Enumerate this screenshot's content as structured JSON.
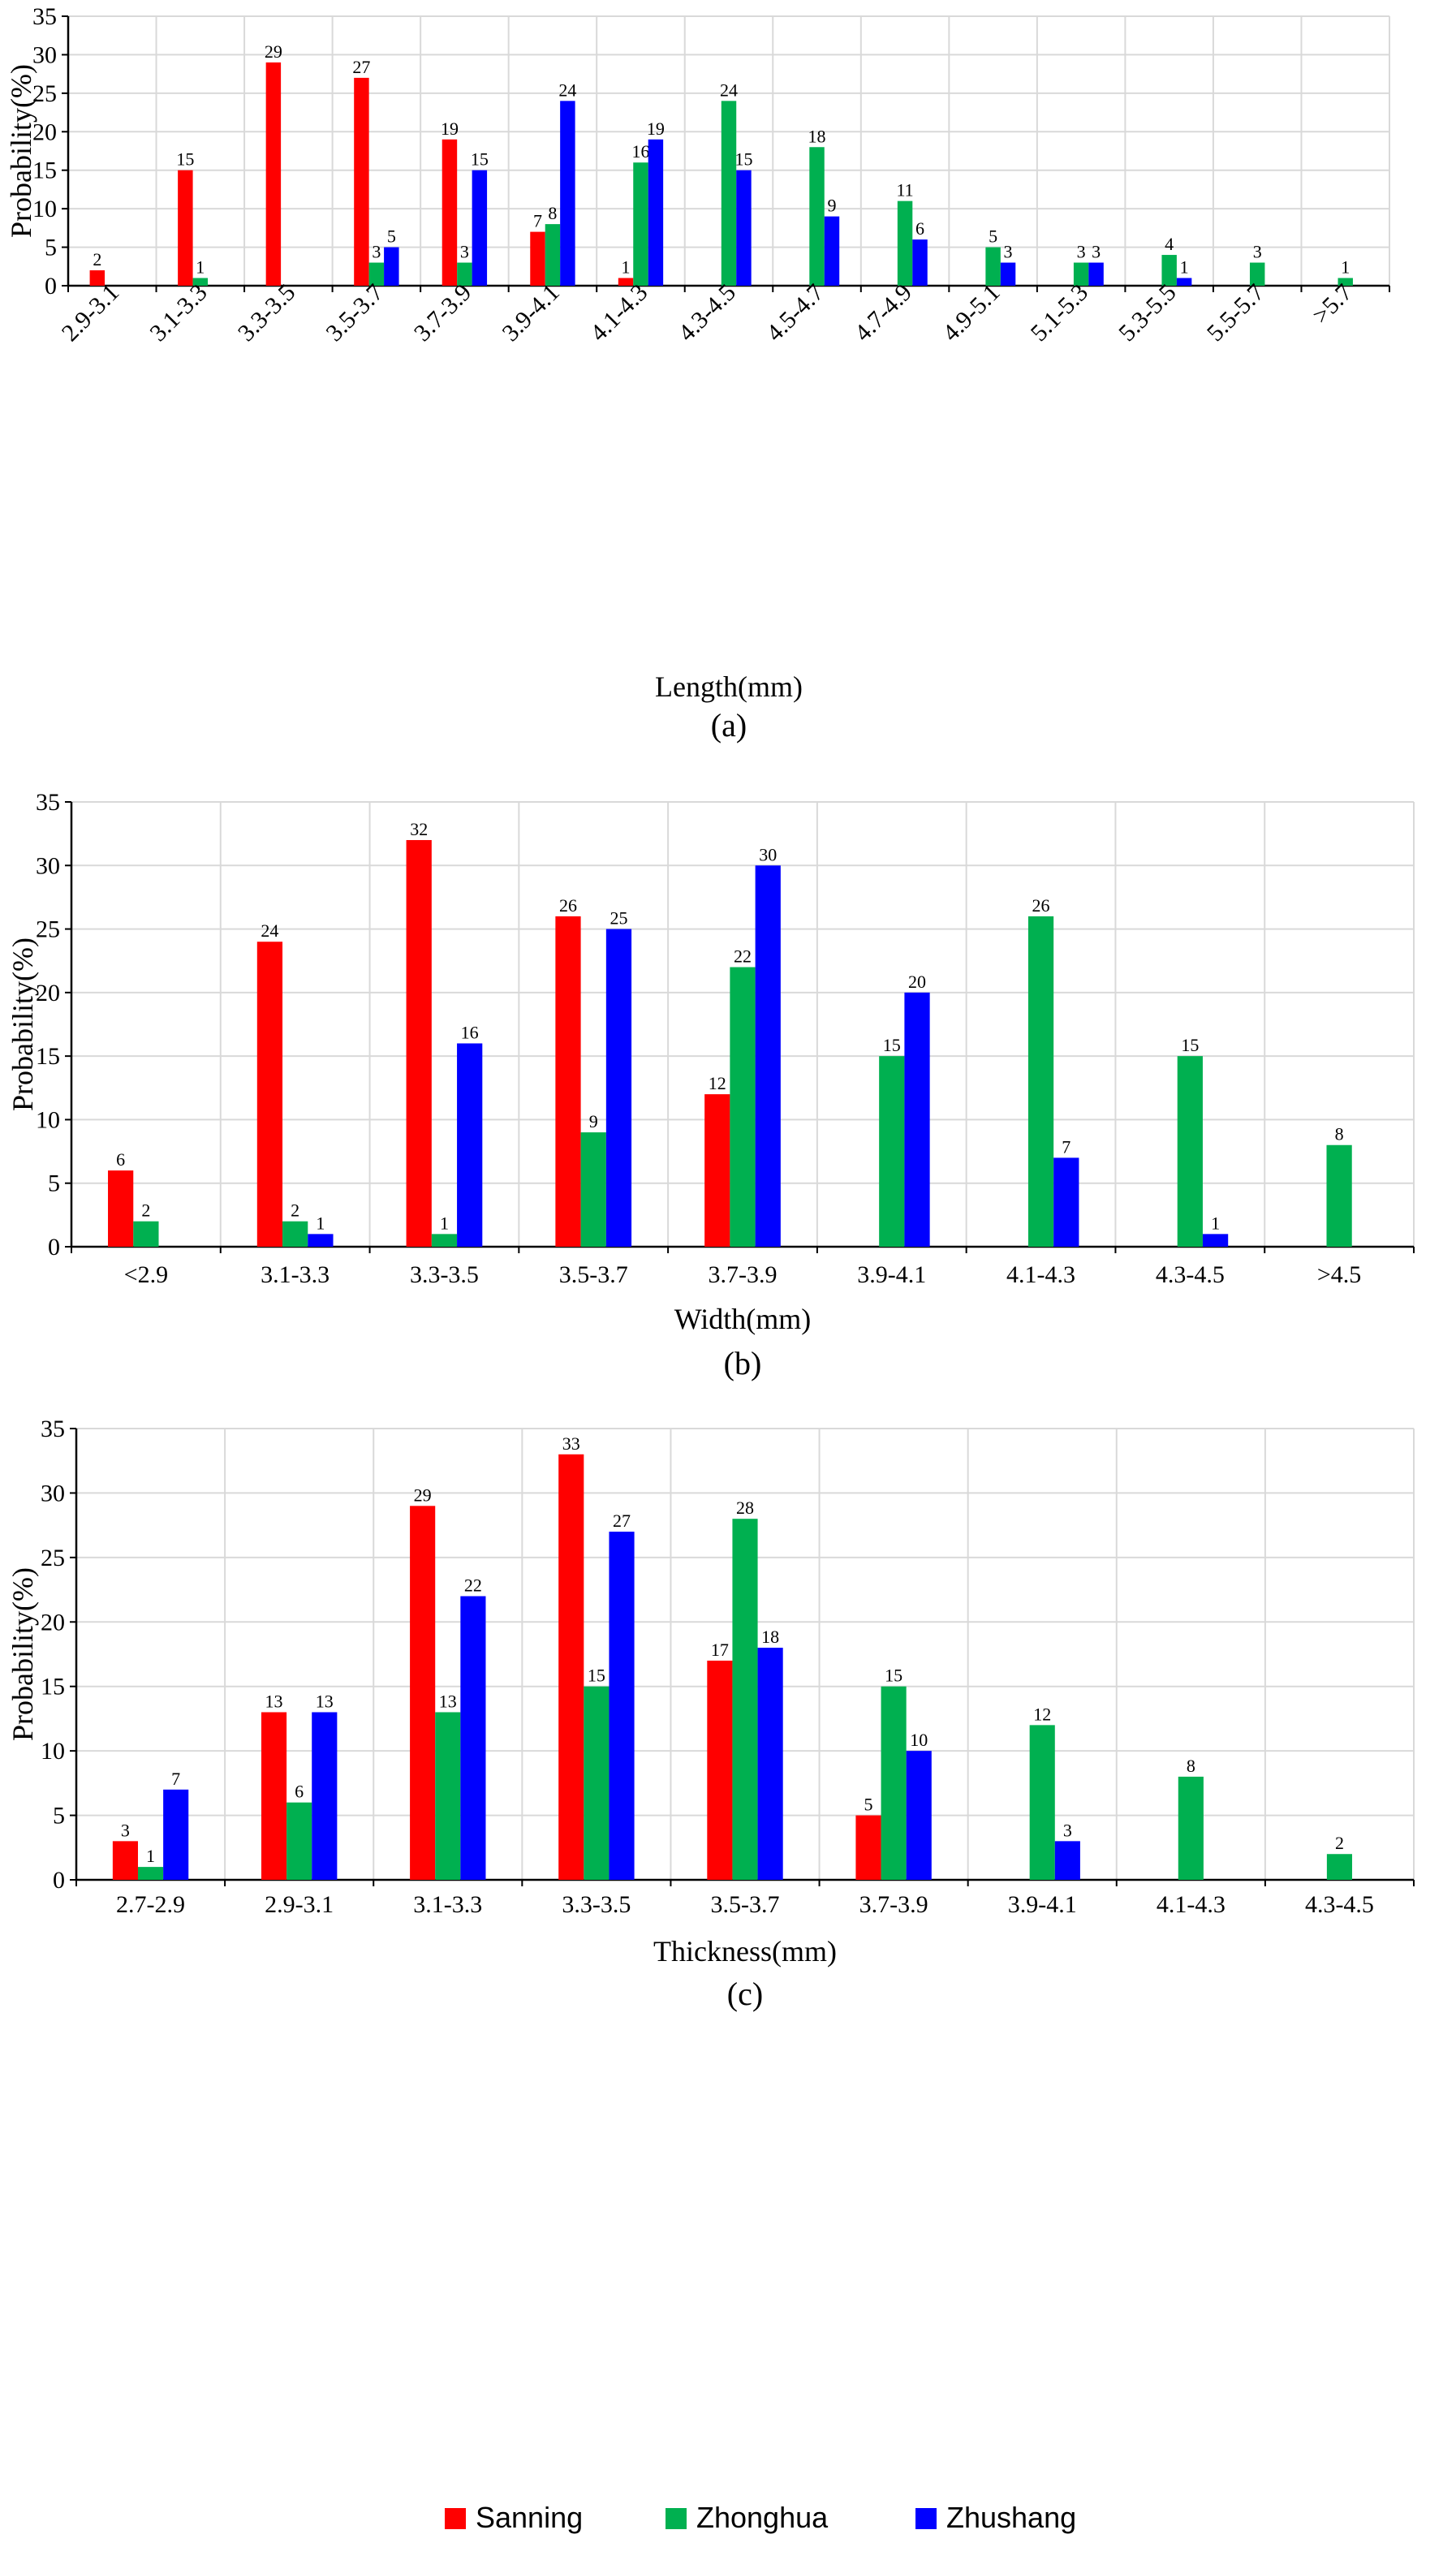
{
  "colors": {
    "Sanning": "#ff0000",
    "Zhonghua": "#00b050",
    "Zhushang": "#0000ff"
  },
  "legend": [
    {
      "name": "Sanning",
      "color": "#ff0000"
    },
    {
      "name": "Zhonghua",
      "color": "#00b050"
    },
    {
      "name": "Zhushang",
      "color": "#0000ff"
    }
  ],
  "chart_data": [
    {
      "type": "bar",
      "panel_label": "(a)",
      "xlabel": "Length(mm)",
      "ylabel": "Probability(%)",
      "ylim": [
        0,
        35
      ],
      "yticks": [
        0,
        5,
        10,
        15,
        20,
        25,
        30,
        35
      ],
      "categories": [
        "2.9-3.1",
        "3.1-3.3",
        "3.3-3.5",
        "3.5-3.7",
        "3.7-3.9",
        "3.9-4.1",
        "4.1-4.3",
        "4.3-4.5",
        "4.5-4.7",
        "4.7-4.9",
        "4.9-5.1",
        "5.1-5.3",
        "5.3-5.5",
        "5.5-5.7",
        ">5.7"
      ],
      "series": [
        {
          "name": "Sanning",
          "values": [
            2,
            15,
            29,
            27,
            19,
            7,
            1,
            0,
            0,
            0,
            0,
            0,
            0,
            0,
            0
          ]
        },
        {
          "name": "Zhonghua",
          "values": [
            0,
            1,
            0,
            3,
            3,
            8,
            16,
            24,
            18,
            11,
            5,
            3,
            4,
            3,
            1
          ]
        },
        {
          "name": "Zhushang",
          "values": [
            0,
            0,
            0,
            5,
            15,
            24,
            19,
            15,
            9,
            6,
            3,
            3,
            1,
            0,
            0
          ]
        }
      ],
      "data_labels": [
        [
          2,
          15,
          29,
          27,
          19,
          7,
          1,
          null,
          null,
          null,
          null,
          null,
          null,
          null,
          null
        ],
        [
          null,
          1,
          null,
          3,
          3,
          8,
          16,
          24,
          18,
          11,
          5,
          3,
          4,
          3,
          1
        ],
        [
          null,
          null,
          null,
          5,
          15,
          24,
          19,
          15,
          9,
          6,
          3,
          3,
          1,
          null,
          null
        ]
      ],
      "grid": true
    },
    {
      "type": "bar",
      "panel_label": "(b)",
      "xlabel": "Width(mm)",
      "ylabel": "Probability(%)",
      "ylim": [
        0,
        35
      ],
      "yticks": [
        0,
        5,
        10,
        15,
        20,
        25,
        30,
        35
      ],
      "categories": [
        "<2.9",
        "3.1-3.3",
        "3.3-3.5",
        "3.5-3.7",
        "3.7-3.9",
        "3.9-4.1",
        "4.1-4.3",
        "4.3-4.5",
        ">4.5"
      ],
      "series": [
        {
          "name": "Sanning",
          "values": [
            6,
            24,
            32,
            26,
            12,
            0,
            0,
            0,
            0
          ]
        },
        {
          "name": "Zhonghua",
          "values": [
            2,
            2,
            1,
            9,
            22,
            15,
            26,
            15,
            8
          ]
        },
        {
          "name": "Zhushang",
          "values": [
            0,
            1,
            16,
            25,
            30,
            20,
            7,
            1,
            0
          ]
        }
      ],
      "data_labels": [
        [
          6,
          24,
          32,
          26,
          12,
          null,
          null,
          null,
          null
        ],
        [
          2,
          2,
          1,
          9,
          22,
          15,
          26,
          15,
          8
        ],
        [
          null,
          1,
          16,
          25,
          30,
          20,
          7,
          1,
          null
        ]
      ],
      "grid": true
    },
    {
      "type": "bar",
      "panel_label": "(c)",
      "xlabel": "Thickness(mm)",
      "ylabel": "Probability(%)",
      "ylim": [
        0,
        35
      ],
      "yticks": [
        0,
        5,
        10,
        15,
        20,
        25,
        30,
        35
      ],
      "categories": [
        "2.7-2.9",
        "2.9-3.1",
        "3.1-3.3",
        "3.3-3.5",
        "3.5-3.7",
        "3.7-3.9",
        "3.9-4.1",
        "4.1-4.3",
        "4.3-4.5"
      ],
      "series": [
        {
          "name": "Sanning",
          "values": [
            3,
            13,
            29,
            33,
            17,
            5,
            0,
            0,
            0
          ]
        },
        {
          "name": "Zhonghua",
          "values": [
            1,
            6,
            13,
            15,
            28,
            15,
            12,
            8,
            2
          ]
        },
        {
          "name": "Zhushang",
          "values": [
            7,
            13,
            22,
            27,
            18,
            10,
            3,
            0,
            0
          ]
        }
      ],
      "data_labels": [
        [
          3,
          13,
          29,
          33,
          17,
          5,
          null,
          null,
          null
        ],
        [
          1,
          6,
          13,
          15,
          28,
          15,
          12,
          8,
          2
        ],
        [
          7,
          13,
          22,
          27,
          18,
          10,
          3,
          null,
          null
        ]
      ],
      "grid": true
    }
  ]
}
